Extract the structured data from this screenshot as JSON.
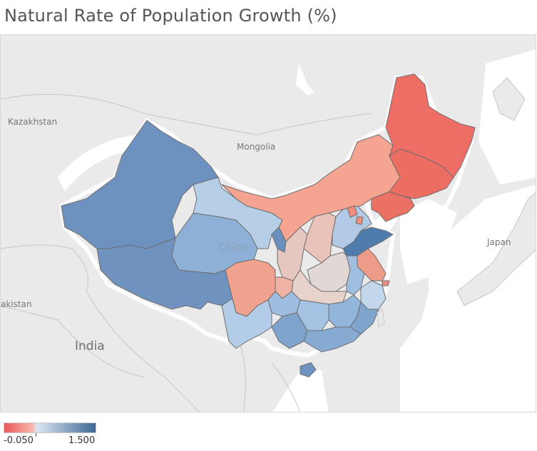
{
  "title": "Natural Rate of Population Growth (%)",
  "map_labels": {
    "kazakhstan": "Kazakhstan",
    "mongolia": "Mongolia",
    "china": "China",
    "japan": "Japan",
    "pakistan_partial": "akistan",
    "india": "India"
  },
  "legend": {
    "min_label": "-0.050",
    "max_label": "1.500",
    "color_low": "#e8595a",
    "color_mid": "#cfdff0",
    "color_high": "#3d6894"
  },
  "colors": {
    "land": "#eaeaea",
    "water": "#ffffff",
    "border": "#c8c8c8",
    "region_border": "#6e6e6e"
  }
}
